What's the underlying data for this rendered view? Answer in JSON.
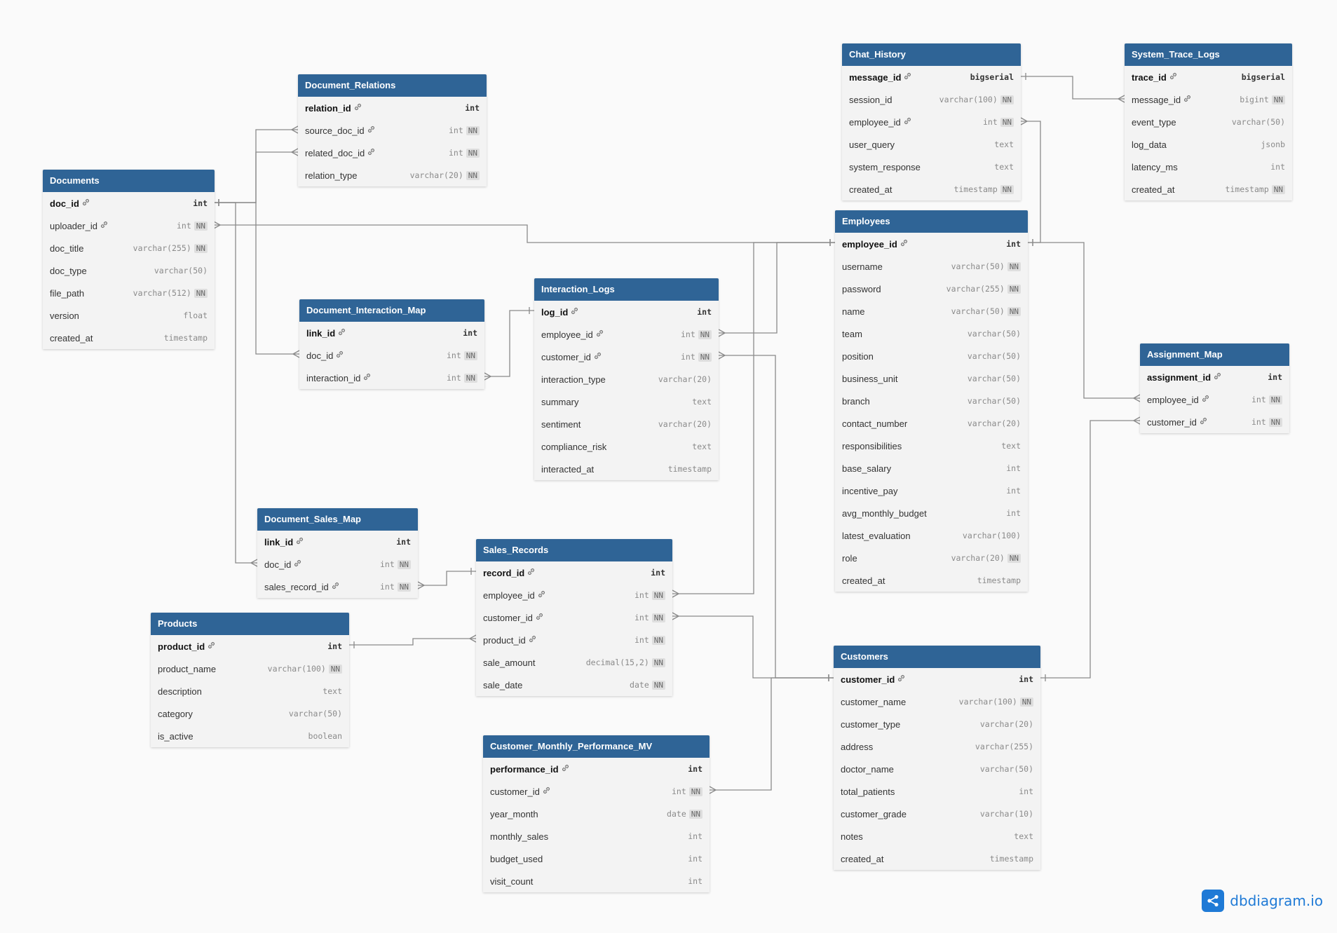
{
  "branding": {
    "logo_text": "dbdiagram.io",
    "accent_color": "#1f7ad6"
  },
  "colors": {
    "header_bg": "#2f6496",
    "body_bg": "#f3f3f3",
    "canvas_bg": "#fafafa",
    "edge": "#8a8a8a"
  },
  "tables": [
    {
      "name": "Documents",
      "columns": [
        {
          "name": "doc_id",
          "type": "int",
          "pk": true
        },
        {
          "name": "uploader_id",
          "type": "int",
          "fk": true,
          "nn": true
        },
        {
          "name": "doc_title",
          "type": "varchar(255)",
          "nn": true
        },
        {
          "name": "doc_type",
          "type": "varchar(50)"
        },
        {
          "name": "file_path",
          "type": "varchar(512)",
          "nn": true
        },
        {
          "name": "version",
          "type": "float"
        },
        {
          "name": "created_at",
          "type": "timestamp"
        }
      ]
    },
    {
      "name": "Document_Relations",
      "columns": [
        {
          "name": "relation_id",
          "type": "int",
          "pk": true
        },
        {
          "name": "source_doc_id",
          "type": "int",
          "fk": true,
          "nn": true
        },
        {
          "name": "related_doc_id",
          "type": "int",
          "fk": true,
          "nn": true
        },
        {
          "name": "relation_type",
          "type": "varchar(20)",
          "nn": true
        }
      ]
    },
    {
      "name": "Document_Interaction_Map",
      "columns": [
        {
          "name": "link_id",
          "type": "int",
          "pk": true
        },
        {
          "name": "doc_id",
          "type": "int",
          "fk": true,
          "nn": true
        },
        {
          "name": "interaction_id",
          "type": "int",
          "fk": true,
          "nn": true
        }
      ]
    },
    {
      "name": "Interaction_Logs",
      "columns": [
        {
          "name": "log_id",
          "type": "int",
          "pk": true
        },
        {
          "name": "employee_id",
          "type": "int",
          "fk": true,
          "nn": true
        },
        {
          "name": "customer_id",
          "type": "int",
          "fk": true,
          "nn": true
        },
        {
          "name": "interaction_type",
          "type": "varchar(20)"
        },
        {
          "name": "summary",
          "type": "text"
        },
        {
          "name": "sentiment",
          "type": "varchar(20)"
        },
        {
          "name": "compliance_risk",
          "type": "text"
        },
        {
          "name": "interacted_at",
          "type": "timestamp"
        }
      ]
    },
    {
      "name": "Document_Sales_Map",
      "columns": [
        {
          "name": "link_id",
          "type": "int",
          "pk": true
        },
        {
          "name": "doc_id",
          "type": "int",
          "fk": true,
          "nn": true
        },
        {
          "name": "sales_record_id",
          "type": "int",
          "fk": true,
          "nn": true
        }
      ]
    },
    {
      "name": "Sales_Records",
      "columns": [
        {
          "name": "record_id",
          "type": "int",
          "pk": true
        },
        {
          "name": "employee_id",
          "type": "int",
          "fk": true,
          "nn": true
        },
        {
          "name": "customer_id",
          "type": "int",
          "fk": true,
          "nn": true
        },
        {
          "name": "product_id",
          "type": "int",
          "fk": true,
          "nn": true
        },
        {
          "name": "sale_amount",
          "type": "decimal(15,2)",
          "nn": true
        },
        {
          "name": "sale_date",
          "type": "date",
          "nn": true
        }
      ]
    },
    {
      "name": "Products",
      "columns": [
        {
          "name": "product_id",
          "type": "int",
          "pk": true
        },
        {
          "name": "product_name",
          "type": "varchar(100)",
          "nn": true
        },
        {
          "name": "description",
          "type": "text"
        },
        {
          "name": "category",
          "type": "varchar(50)"
        },
        {
          "name": "is_active",
          "type": "boolean"
        }
      ]
    },
    {
      "name": "Customer_Monthly_Performance_MV",
      "columns": [
        {
          "name": "performance_id",
          "type": "int",
          "pk": true
        },
        {
          "name": "customer_id",
          "type": "int",
          "fk": true,
          "nn": true
        },
        {
          "name": "year_month",
          "type": "date",
          "nn": true
        },
        {
          "name": "monthly_sales",
          "type": "int"
        },
        {
          "name": "budget_used",
          "type": "int"
        },
        {
          "name": "visit_count",
          "type": "int"
        }
      ]
    },
    {
      "name": "Chat_History",
      "columns": [
        {
          "name": "message_id",
          "type": "bigserial",
          "pk": true
        },
        {
          "name": "session_id",
          "type": "varchar(100)",
          "nn": true
        },
        {
          "name": "employee_id",
          "type": "int",
          "fk": true,
          "nn": true
        },
        {
          "name": "user_query",
          "type": "text"
        },
        {
          "name": "system_response",
          "type": "text"
        },
        {
          "name": "created_at",
          "type": "timestamp",
          "nn": true
        }
      ]
    },
    {
      "name": "System_Trace_Logs",
      "columns": [
        {
          "name": "trace_id",
          "type": "bigserial",
          "pk": true
        },
        {
          "name": "message_id",
          "type": "bigint",
          "fk": true,
          "nn": true
        },
        {
          "name": "event_type",
          "type": "varchar(50)"
        },
        {
          "name": "log_data",
          "type": "jsonb"
        },
        {
          "name": "latency_ms",
          "type": "int"
        },
        {
          "name": "created_at",
          "type": "timestamp",
          "nn": true
        }
      ]
    },
    {
      "name": "Employees",
      "columns": [
        {
          "name": "employee_id",
          "type": "int",
          "pk": true
        },
        {
          "name": "username",
          "type": "varchar(50)",
          "nn": true
        },
        {
          "name": "password",
          "type": "varchar(255)",
          "nn": true
        },
        {
          "name": "name",
          "type": "varchar(50)",
          "nn": true
        },
        {
          "name": "team",
          "type": "varchar(50)"
        },
        {
          "name": "position",
          "type": "varchar(50)"
        },
        {
          "name": "business_unit",
          "type": "varchar(50)"
        },
        {
          "name": "branch",
          "type": "varchar(50)"
        },
        {
          "name": "contact_number",
          "type": "varchar(20)"
        },
        {
          "name": "responsibilities",
          "type": "text"
        },
        {
          "name": "base_salary",
          "type": "int"
        },
        {
          "name": "incentive_pay",
          "type": "int"
        },
        {
          "name": "avg_monthly_budget",
          "type": "int"
        },
        {
          "name": "latest_evaluation",
          "type": "varchar(100)"
        },
        {
          "name": "role",
          "type": "varchar(20)",
          "nn": true
        },
        {
          "name": "created_at",
          "type": "timestamp"
        }
      ]
    },
    {
      "name": "Assignment_Map",
      "columns": [
        {
          "name": "assignment_id",
          "type": "int",
          "pk": true
        },
        {
          "name": "employee_id",
          "type": "int",
          "fk": true,
          "nn": true
        },
        {
          "name": "customer_id",
          "type": "int",
          "fk": true,
          "nn": true
        }
      ]
    },
    {
      "name": "Customers",
      "columns": [
        {
          "name": "customer_id",
          "type": "int",
          "pk": true
        },
        {
          "name": "customer_name",
          "type": "varchar(100)",
          "nn": true
        },
        {
          "name": "customer_type",
          "type": "varchar(20)"
        },
        {
          "name": "address",
          "type": "varchar(255)"
        },
        {
          "name": "doctor_name",
          "type": "varchar(50)"
        },
        {
          "name": "total_patients",
          "type": "int"
        },
        {
          "name": "customer_grade",
          "type": "varchar(10)"
        },
        {
          "name": "notes",
          "type": "text"
        },
        {
          "name": "created_at",
          "type": "timestamp"
        }
      ]
    }
  ],
  "relations": [
    {
      "from": "Documents.doc_id",
      "to": "Document_Relations.source_doc_id"
    },
    {
      "from": "Documents.doc_id",
      "to": "Document_Relations.related_doc_id"
    },
    {
      "from": "Documents.doc_id",
      "to": "Document_Interaction_Map.doc_id"
    },
    {
      "from": "Documents.doc_id",
      "to": "Document_Sales_Map.doc_id"
    },
    {
      "from": "Employees.employee_id",
      "to": "Documents.uploader_id"
    },
    {
      "from": "Interaction_Logs.log_id",
      "to": "Document_Interaction_Map.interaction_id"
    },
    {
      "from": "Sales_Records.record_id",
      "to": "Document_Sales_Map.sales_record_id"
    },
    {
      "from": "Products.product_id",
      "to": "Sales_Records.product_id"
    },
    {
      "from": "Employees.employee_id",
      "to": "Interaction_Logs.employee_id"
    },
    {
      "from": "Customers.customer_id",
      "to": "Interaction_Logs.customer_id"
    },
    {
      "from": "Employees.employee_id",
      "to": "Sales_Records.employee_id"
    },
    {
      "from": "Customers.customer_id",
      "to": "Sales_Records.customer_id"
    },
    {
      "from": "Customers.customer_id",
      "to": "Customer_Monthly_Performance_MV.customer_id"
    },
    {
      "from": "Chat_History.message_id",
      "to": "System_Trace_Logs.message_id"
    },
    {
      "from": "Employees.employee_id",
      "to": "Chat_History.employee_id"
    },
    {
      "from": "Employees.employee_id",
      "to": "Assignment_Map.employee_id"
    },
    {
      "from": "Customers.customer_id",
      "to": "Assignment_Map.customer_id"
    }
  ]
}
